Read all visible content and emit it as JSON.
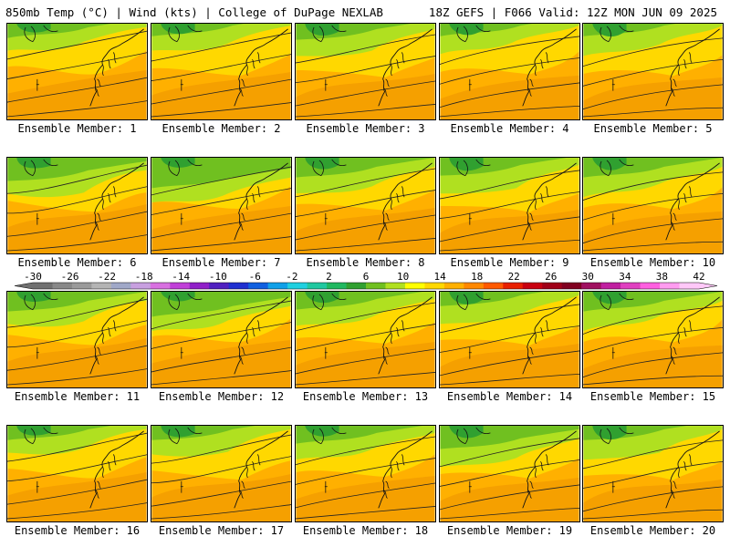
{
  "header": {
    "left": "850mb Temp (°C) | Wind (kts) | College of DuPage NEXLAB",
    "right": "18Z GEFS | F066 Valid: 12Z MON JUN 09 2025"
  },
  "colorbar": {
    "tick_labels": [
      "-30",
      "-26",
      "-22",
      "-18",
      "-14",
      "-10",
      "-6",
      "-2",
      "2",
      "6",
      "10",
      "14",
      "18",
      "22",
      "26",
      "30",
      "34",
      "38",
      "42"
    ],
    "colors": [
      "#707070",
      "#888888",
      "#9a9a9a",
      "#b4b4b4",
      "#a0a8c8",
      "#c8a0e0",
      "#d870e0",
      "#c040d8",
      "#9020c8",
      "#5020c0",
      "#2030d0",
      "#1060e0",
      "#10a0e8",
      "#20d0e0",
      "#20c8a0",
      "#20b860",
      "#30a030",
      "#70c020",
      "#b0e020",
      "#ffff00",
      "#ffd800",
      "#ffb000",
      "#ff8800",
      "#ff5a00",
      "#e82000",
      "#c80010",
      "#a00018",
      "#800020",
      "#a01060",
      "#c020a0",
      "#e040c0",
      "#ff60e0",
      "#ff9cf0",
      "#ffc8f8"
    ]
  },
  "panels": [
    {
      "label": "Ensemble Member: 1"
    },
    {
      "label": "Ensemble Member: 2"
    },
    {
      "label": "Ensemble Member: 3"
    },
    {
      "label": "Ensemble Member: 4"
    },
    {
      "label": "Ensemble Member: 5"
    },
    {
      "label": "Ensemble Member: 6"
    },
    {
      "label": "Ensemble Member: 7"
    },
    {
      "label": "Ensemble Member: 8"
    },
    {
      "label": "Ensemble Member: 9"
    },
    {
      "label": "Ensemble Member: 10"
    },
    {
      "label": "Ensemble Member: 11"
    },
    {
      "label": "Ensemble Member: 12"
    },
    {
      "label": "Ensemble Member: 13"
    },
    {
      "label": "Ensemble Member: 14"
    },
    {
      "label": "Ensemble Member: 15"
    },
    {
      "label": "Ensemble Member: 16"
    },
    {
      "label": "Ensemble Member: 17"
    },
    {
      "label": "Ensemble Member: 18"
    },
    {
      "label": "Ensemble Member: 19"
    },
    {
      "label": "Ensemble Member: 20"
    }
  ]
}
